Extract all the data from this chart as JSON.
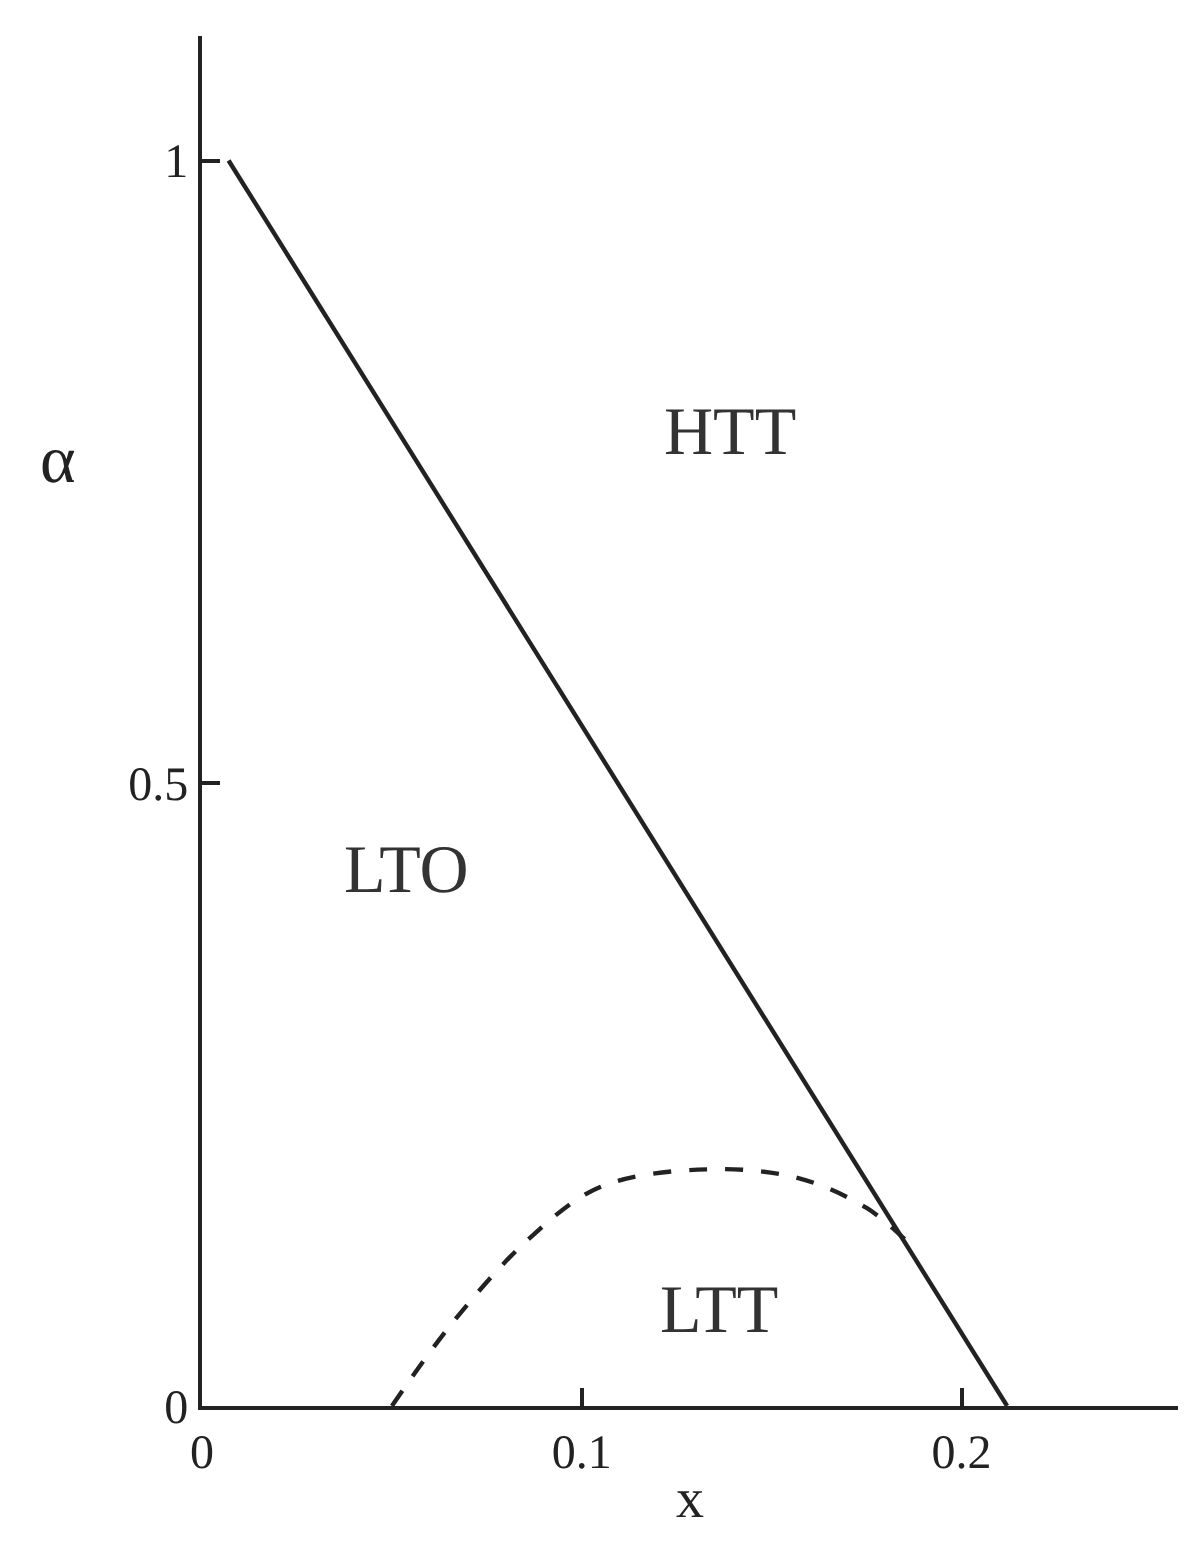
{
  "chart_data": {
    "type": "line",
    "xlabel": "x",
    "ylabel": "α",
    "xlim": [
      0,
      0.257
    ],
    "ylim": [
      0,
      1.1
    ],
    "xticks": [
      0,
      0.1,
      0.2
    ],
    "yticks": [
      0,
      0.5,
      1
    ],
    "marker": "none",
    "series": [
      {
        "color": "#222222",
        "x": [
          0.007,
          0.212
        ],
        "values": [
          1,
          0
        ],
        "line_style": "solid"
      },
      {
        "color": "#222222",
        "x": [
          0.05,
          0.066,
          0.086,
          0.105,
          0.133,
          0.157,
          0.175,
          0.185
        ],
        "values": [
          0,
          0.067,
          0.134,
          0.176,
          0.19,
          0.183,
          0.159,
          0.134
        ],
        "line_style": "dashed"
      }
    ],
    "annotations": [
      "HTT",
      "LTO",
      "LTT"
    ]
  }
}
